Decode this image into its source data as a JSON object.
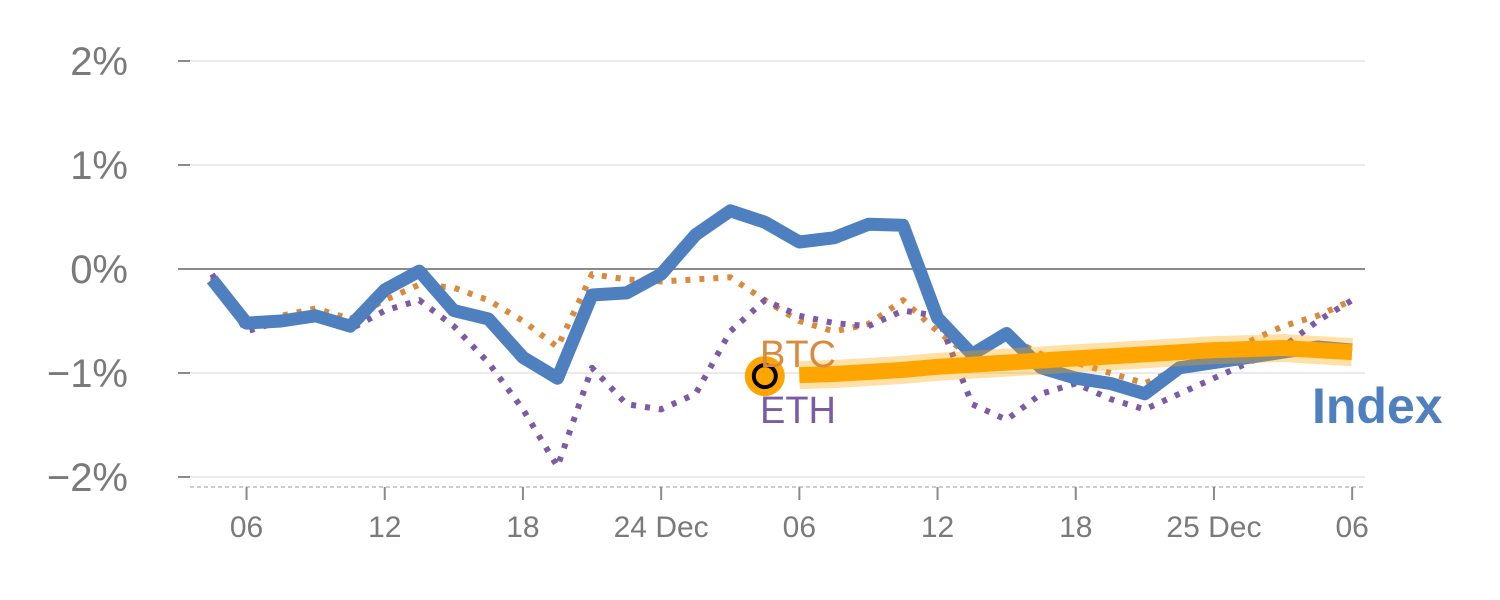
{
  "chart_data": {
    "type": "line",
    "y_ticks": [
      {
        "value": 2,
        "label": "2%"
      },
      {
        "value": 1,
        "label": "1%"
      },
      {
        "value": 0,
        "label": "0%"
      },
      {
        "value": -1,
        "label": "−1%"
      },
      {
        "value": -2,
        "label": "−2%"
      }
    ],
    "ylim": [
      -2.1,
      2.1
    ],
    "xlim": [
      0,
      34
    ],
    "x_ticks": [
      {
        "x": 1,
        "label": "06"
      },
      {
        "x": 5,
        "label": "12"
      },
      {
        "x": 9,
        "label": "18"
      },
      {
        "x": 13,
        "label": "24 Dec"
      },
      {
        "x": 17,
        "label": "06"
      },
      {
        "x": 21,
        "label": "12"
      },
      {
        "x": 25,
        "label": "18"
      },
      {
        "x": 29,
        "label": "25 Dec"
      },
      {
        "x": 33,
        "label": "06"
      }
    ],
    "series": [
      {
        "name": "Index",
        "label": "Index",
        "color": "#4e7fbf",
        "style": "solid",
        "x": [
          0,
          1,
          2,
          3,
          4,
          5,
          6,
          7,
          8,
          9,
          10,
          11,
          12,
          13,
          14,
          15,
          16,
          17,
          18,
          19,
          20,
          21,
          22,
          23,
          24,
          25,
          26,
          27,
          28,
          29,
          30,
          31,
          32,
          33
        ],
        "values": [
          -0.1,
          -0.52,
          -0.5,
          -0.45,
          -0.55,
          -0.2,
          -0.02,
          -0.4,
          -0.48,
          -0.85,
          -1.05,
          -0.25,
          -0.23,
          -0.05,
          0.33,
          0.56,
          0.45,
          0.26,
          0.3,
          0.43,
          0.42,
          -0.47,
          -0.82,
          -0.62,
          -0.95,
          -1.05,
          -1.1,
          -1.2,
          -0.95,
          -0.9,
          -0.85,
          -0.8,
          -0.75,
          -0.78
        ]
      },
      {
        "name": "BTC",
        "label": "BTC",
        "color": "#d98a3d",
        "style": "dotted",
        "x": [
          0,
          1,
          2,
          3,
          4,
          5,
          6,
          7,
          8,
          9,
          10,
          11,
          12,
          13,
          14,
          15,
          16,
          17,
          18,
          19,
          20,
          21,
          22,
          23,
          24,
          25,
          26,
          27,
          28,
          29,
          30,
          31,
          32,
          33
        ],
        "values": [
          -0.08,
          -0.55,
          -0.45,
          -0.38,
          -0.48,
          -0.3,
          -0.15,
          -0.18,
          -0.3,
          -0.5,
          -0.75,
          -0.05,
          -0.1,
          -0.12,
          -0.1,
          -0.08,
          -0.3,
          -0.5,
          -0.6,
          -0.53,
          -0.3,
          -0.6,
          -0.85,
          -0.65,
          -0.82,
          -0.9,
          -1.0,
          -1.1,
          -0.95,
          -0.82,
          -0.7,
          -0.55,
          -0.45,
          -0.3
        ]
      },
      {
        "name": "ETH",
        "label": "ETH",
        "color": "#7b5aa6",
        "style": "dotted",
        "x": [
          0,
          1,
          2,
          3,
          4,
          5,
          6,
          7,
          8,
          9,
          10,
          11,
          12,
          13,
          14,
          15,
          16,
          17,
          18,
          19,
          20,
          21,
          22,
          23,
          24,
          25,
          26,
          27,
          28,
          29,
          30,
          31,
          32,
          33
        ],
        "values": [
          -0.05,
          -0.6,
          -0.5,
          -0.42,
          -0.58,
          -0.4,
          -0.3,
          -0.55,
          -0.9,
          -1.35,
          -1.9,
          -0.95,
          -1.3,
          -1.35,
          -1.2,
          -0.6,
          -0.3,
          -0.45,
          -0.52,
          -0.55,
          -0.4,
          -0.45,
          -1.3,
          -1.45,
          -1.2,
          -1.1,
          -1.25,
          -1.35,
          -1.2,
          -1.05,
          -0.9,
          -0.75,
          -0.5,
          -0.3
        ]
      },
      {
        "name": "Highlight",
        "label": "",
        "color": "#ffa500",
        "style": "highlight",
        "x": [
          17,
          18,
          19,
          20,
          21,
          22,
          23,
          24,
          25,
          26,
          27,
          28,
          29,
          30,
          31,
          32,
          33
        ],
        "values": [
          -1.02,
          -1.01,
          -0.99,
          -0.97,
          -0.94,
          -0.92,
          -0.9,
          -0.88,
          -0.86,
          -0.84,
          -0.82,
          -0.8,
          -0.78,
          -0.77,
          -0.76,
          -0.78,
          -0.8
        ]
      }
    ],
    "marker": {
      "x": 16,
      "value": -1.03,
      "color": "#ffa500"
    }
  }
}
